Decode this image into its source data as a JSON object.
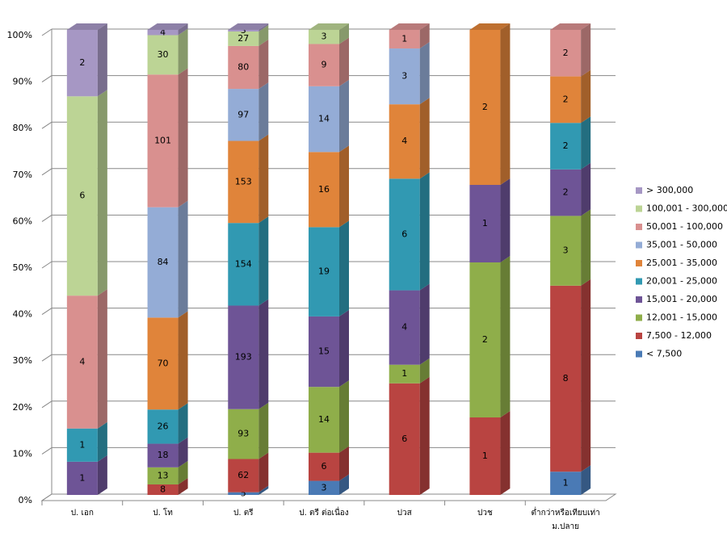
{
  "chart_data": {
    "type": "bar",
    "stack": "percent",
    "categories": [
      "ป. เอก",
      "ป. โท",
      "ป. ตรี",
      "ป. ตรี ต่อเนื่อง",
      "ปวส",
      "ปวช",
      "ต่ำกว่าหรือเทียบเท่า ม.ปลาย"
    ],
    "series": [
      {
        "name": "< 7,500",
        "color": "#4a7ab5",
        "values": [
          null,
          null,
          5,
          3,
          null,
          null,
          1
        ]
      },
      {
        "name": "7,500 - 12,000",
        "color": "#b94441",
        "values": [
          null,
          8,
          62,
          6,
          6,
          1,
          8
        ]
      },
      {
        "name": "12,001 - 15,000",
        "color": "#8fae4a",
        "values": [
          null,
          13,
          93,
          14,
          1,
          2,
          3
        ]
      },
      {
        "name": "15,001 - 20,000",
        "color": "#6e5496",
        "values": [
          1,
          18,
          193,
          15,
          4,
          1,
          2
        ]
      },
      {
        "name": "20,001 - 25,000",
        "color": "#3199b2",
        "values": [
          1,
          26,
          154,
          19,
          6,
          null,
          2
        ]
      },
      {
        "name": "25,001 - 35,000",
        "color": "#e0843a",
        "values": [
          null,
          70,
          153,
          16,
          4,
          2,
          2
        ]
      },
      {
        "name": "35,001 - 50,000",
        "color": "#94acd6",
        "values": [
          null,
          84,
          97,
          14,
          3,
          null,
          null
        ]
      },
      {
        "name": "50,001 - 100,000",
        "color": "#d9908f",
        "values": [
          4,
          101,
          80,
          9,
          1,
          null,
          2
        ]
      },
      {
        "name": "100,001 - 300,000",
        "color": "#bcd495",
        "values": [
          6,
          30,
          27,
          3,
          null,
          null,
          null
        ]
      },
      {
        "name": "> 300,000",
        "color": "#a697c4",
        "values": [
          2,
          4,
          3,
          null,
          null,
          null,
          null
        ]
      }
    ],
    "ylim": [
      0,
      100
    ],
    "yticks": [
      {
        "value": 0,
        "label": "0%"
      },
      {
        "value": 10,
        "label": "10%"
      },
      {
        "value": 20,
        "label": "20%"
      },
      {
        "value": 30,
        "label": "30%"
      },
      {
        "value": 40,
        "label": "40%"
      },
      {
        "value": 50,
        "label": "50%"
      },
      {
        "value": 60,
        "label": "60%"
      },
      {
        "value": 70,
        "label": "70%"
      },
      {
        "value": 80,
        "label": "80%"
      },
      {
        "value": 90,
        "label": "90%"
      },
      {
        "value": 100,
        "label": "100%"
      }
    ],
    "grid": true,
    "legend": "right"
  }
}
